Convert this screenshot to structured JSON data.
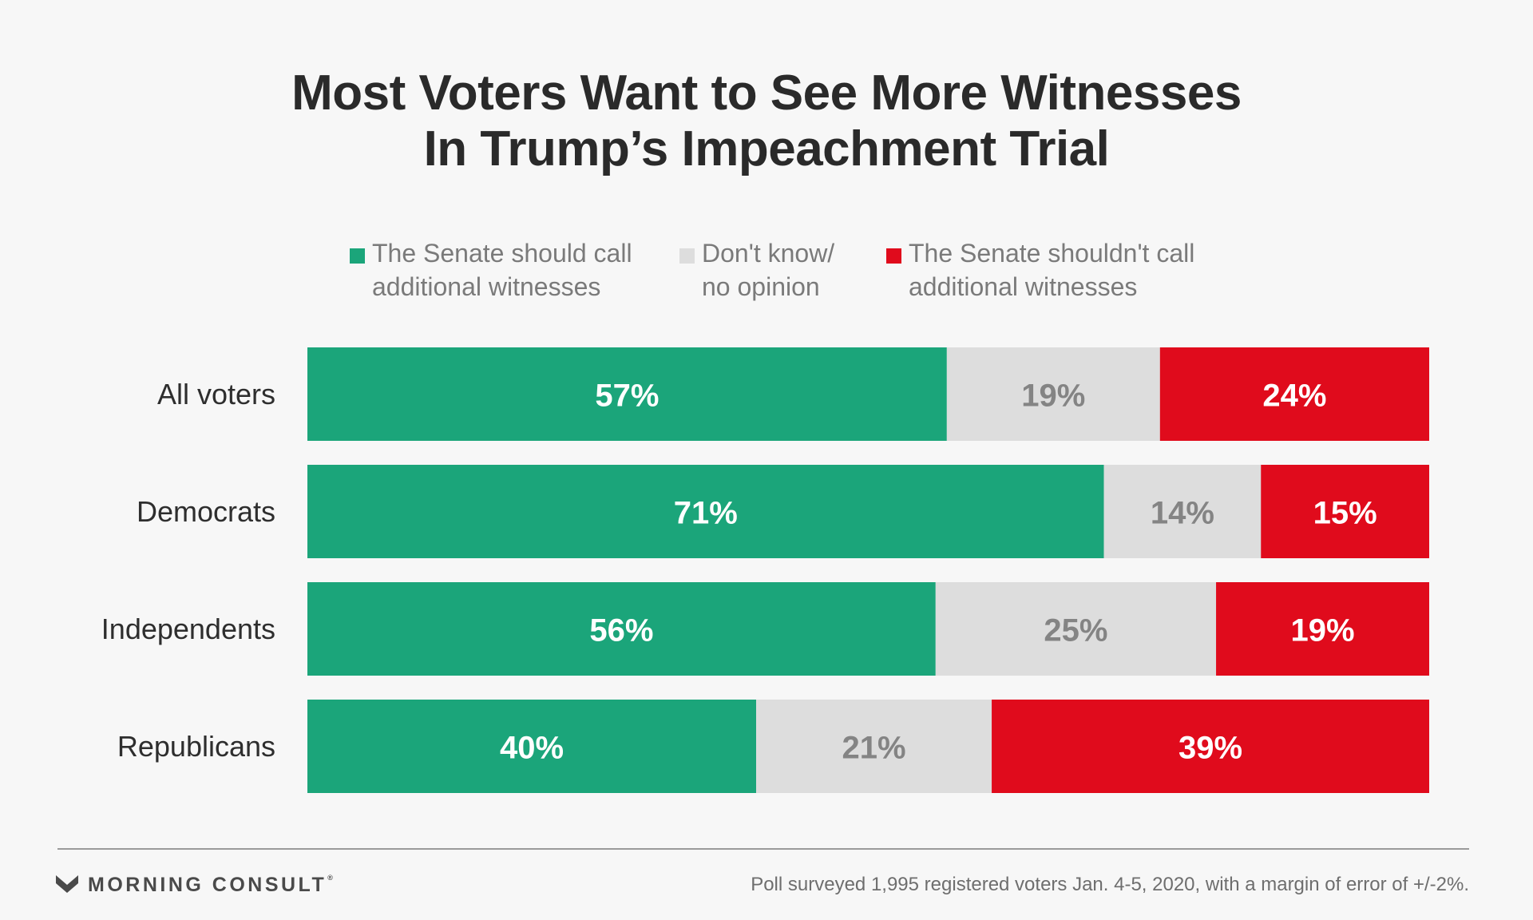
{
  "title": {
    "line1": "Most Voters Want to See More Witnesses",
    "line2": "In Trump’s Impeachment Trial"
  },
  "colors": {
    "call": "#1ba57a",
    "dont_know": "#dddddd",
    "not_call": "#e00b1c",
    "label_on_dark": "#ffffff",
    "label_on_light": "#848484"
  },
  "chart_data": {
    "type": "bar",
    "orientation": "horizontal",
    "stacked": true,
    "categories": [
      "All voters",
      "Democrats",
      "Independents",
      "Republicans"
    ],
    "series": [
      {
        "name": "The Senate should call additional witnesses",
        "name_lines": [
          "The Senate should call",
          "additional witnesses"
        ],
        "color": "#1ba57a",
        "values": [
          57,
          71,
          56,
          40
        ]
      },
      {
        "name": "Don't know/ no opinion",
        "name_lines": [
          "Don't know/",
          "no opinion"
        ],
        "color": "#dddddd",
        "values": [
          19,
          14,
          25,
          21
        ]
      },
      {
        "name": "The Senate shouldn't call additional witnesses",
        "name_lines": [
          "The Senate shouldn't call",
          "additional witnesses"
        ],
        "color": "#e00b1c",
        "values": [
          24,
          15,
          19,
          39
        ]
      }
    ],
    "value_suffix": "%",
    "xlim": [
      0,
      100
    ],
    "grid": false,
    "legend_position": "top"
  },
  "footer": {
    "brand": "MORNING CONSULT",
    "brand_mark": "®",
    "note": "Poll surveyed 1,995 registered voters Jan. 4-5, 2020, with a margin of error of +/-2%."
  }
}
